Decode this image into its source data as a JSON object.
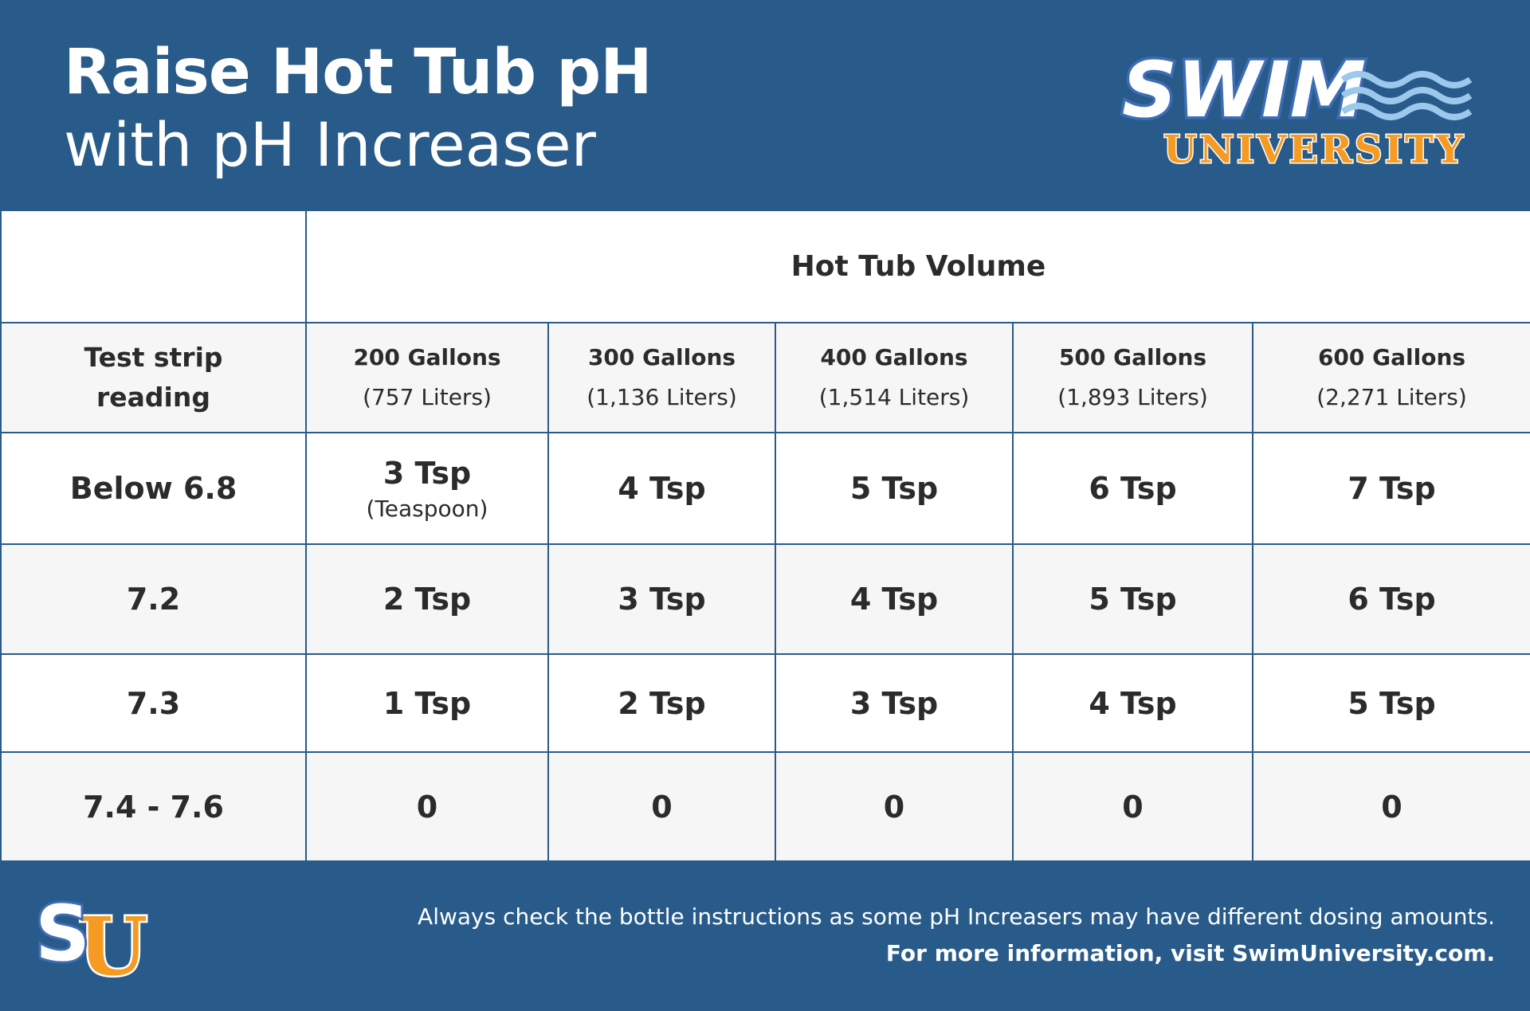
{
  "header": {
    "title_line1": "Raise Hot Tub pH",
    "title_line2": "with pH Increaser",
    "logo_text": "SWIM UNIVERSITY"
  },
  "table": {
    "group_header": "Hot Tub Volume",
    "row_header_label": "Test strip reading",
    "columns": [
      {
        "gallons": "200 Gallons",
        "liters": "(757 Liters)"
      },
      {
        "gallons": "300 Gallons",
        "liters": "(1,136 Liters)"
      },
      {
        "gallons": "400 Gallons",
        "liters": "(1,514 Liters)"
      },
      {
        "gallons": "500 Gallons",
        "liters": "(1,893 Liters)"
      },
      {
        "gallons": "600 Gallons",
        "liters": "(2,271 Liters)"
      }
    ],
    "rows": [
      {
        "reading": "Below 6.8",
        "values": [
          "3 Tsp",
          "4 Tsp",
          "5 Tsp",
          "6 Tsp",
          "7 Tsp"
        ],
        "note": "(Teaspoon)"
      },
      {
        "reading": "7.2",
        "values": [
          "2 Tsp",
          "3 Tsp",
          "4 Tsp",
          "5 Tsp",
          "6 Tsp"
        ]
      },
      {
        "reading": "7.3",
        "values": [
          "1 Tsp",
          "2 Tsp",
          "3 Tsp",
          "4 Tsp",
          "5 Tsp"
        ]
      },
      {
        "reading": "7.4 - 7.6",
        "values": [
          "0",
          "0",
          "0",
          "0",
          "0"
        ]
      }
    ]
  },
  "footer": {
    "disclaimer": "Always check the bottle instructions as some pH Increasers may have different dosing amounts.",
    "more_info": "For more information, visit SwimUniversity.com.",
    "badge_text": "SU"
  },
  "colors": {
    "background": "#285b8a",
    "logo_orange": "#f59a23",
    "wave": "#9cc8ec",
    "row_alt": "#f6f6f6"
  }
}
